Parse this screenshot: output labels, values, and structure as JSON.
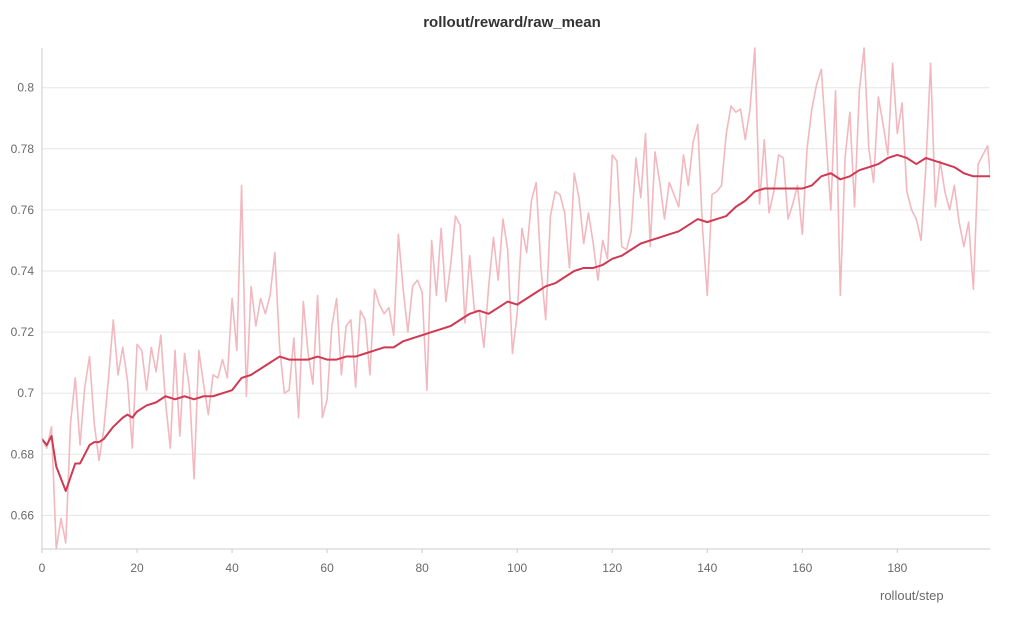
{
  "chart_data": {
    "type": "line",
    "title": "rollout/reward/raw_mean",
    "xlabel": "rollout/step",
    "ylabel": "",
    "xlim": [
      0,
      199
    ],
    "ylim": [
      0.649,
      0.813
    ],
    "x_ticks": [
      "0",
      "20",
      "40",
      "60",
      "80",
      "100",
      "120",
      "140",
      "160",
      "180"
    ],
    "y_ticks": [
      "0.66",
      "0.68",
      "0.7",
      "0.72",
      "0.74",
      "0.76",
      "0.78",
      "0.8"
    ],
    "grid": true,
    "series": [
      {
        "role": "raw",
        "color": "#f2b8bf",
        "points": [
          [
            0,
            0.685
          ],
          [
            1,
            0.682
          ],
          [
            2,
            0.689
          ],
          [
            3,
            0.649
          ],
          [
            4,
            0.659
          ],
          [
            5,
            0.651
          ],
          [
            6,
            0.69
          ],
          [
            7,
            0.705
          ],
          [
            8,
            0.683
          ],
          [
            9,
            0.702
          ],
          [
            10,
            0.712
          ],
          [
            11,
            0.69
          ],
          [
            12,
            0.678
          ],
          [
            13,
            0.688
          ],
          [
            14,
            0.705
          ],
          [
            15,
            0.724
          ],
          [
            16,
            0.706
          ],
          [
            17,
            0.715
          ],
          [
            18,
            0.704
          ],
          [
            19,
            0.682
          ],
          [
            20,
            0.716
          ],
          [
            21,
            0.714
          ],
          [
            22,
            0.701
          ],
          [
            23,
            0.715
          ],
          [
            24,
            0.707
          ],
          [
            25,
            0.719
          ],
          [
            26,
            0.697
          ],
          [
            27,
            0.682
          ],
          [
            28,
            0.714
          ],
          [
            29,
            0.686
          ],
          [
            30,
            0.713
          ],
          [
            31,
            0.702
          ],
          [
            32,
            0.672
          ],
          [
            33,
            0.714
          ],
          [
            34,
            0.703
          ],
          [
            35,
            0.693
          ],
          [
            36,
            0.706
          ],
          [
            37,
            0.705
          ],
          [
            38,
            0.711
          ],
          [
            39,
            0.705
          ],
          [
            40,
            0.731
          ],
          [
            41,
            0.714
          ],
          [
            42,
            0.768
          ],
          [
            43,
            0.699
          ],
          [
            44,
            0.735
          ],
          [
            45,
            0.722
          ],
          [
            46,
            0.731
          ],
          [
            47,
            0.726
          ],
          [
            48,
            0.732
          ],
          [
            49,
            0.746
          ],
          [
            50,
            0.715
          ],
          [
            51,
            0.7
          ],
          [
            52,
            0.701
          ],
          [
            53,
            0.718
          ],
          [
            54,
            0.692
          ],
          [
            55,
            0.73
          ],
          [
            56,
            0.713
          ],
          [
            57,
            0.703
          ],
          [
            58,
            0.732
          ],
          [
            59,
            0.692
          ],
          [
            60,
            0.698
          ],
          [
            61,
            0.722
          ],
          [
            62,
            0.731
          ],
          [
            63,
            0.706
          ],
          [
            64,
            0.722
          ],
          [
            65,
            0.724
          ],
          [
            66,
            0.702
          ],
          [
            67,
            0.727
          ],
          [
            68,
            0.724
          ],
          [
            69,
            0.706
          ],
          [
            70,
            0.734
          ],
          [
            71,
            0.729
          ],
          [
            72,
            0.726
          ],
          [
            73,
            0.728
          ],
          [
            74,
            0.719
          ],
          [
            75,
            0.752
          ],
          [
            76,
            0.734
          ],
          [
            77,
            0.72
          ],
          [
            78,
            0.735
          ],
          [
            79,
            0.737
          ],
          [
            80,
            0.733
          ],
          [
            81,
            0.701
          ],
          [
            82,
            0.75
          ],
          [
            83,
            0.732
          ],
          [
            84,
            0.754
          ],
          [
            85,
            0.73
          ],
          [
            86,
            0.742
          ],
          [
            87,
            0.758
          ],
          [
            88,
            0.755
          ],
          [
            89,
            0.723
          ],
          [
            90,
            0.745
          ],
          [
            91,
            0.727
          ],
          [
            92,
            0.727
          ],
          [
            93,
            0.715
          ],
          [
            94,
            0.735
          ],
          [
            95,
            0.751
          ],
          [
            96,
            0.737
          ],
          [
            97,
            0.757
          ],
          [
            98,
            0.747
          ],
          [
            99,
            0.713
          ],
          [
            100,
            0.726
          ],
          [
            101,
            0.754
          ],
          [
            102,
            0.746
          ],
          [
            103,
            0.763
          ],
          [
            104,
            0.769
          ],
          [
            105,
            0.741
          ],
          [
            106,
            0.724
          ],
          [
            107,
            0.758
          ],
          [
            108,
            0.766
          ],
          [
            109,
            0.765
          ],
          [
            110,
            0.759
          ],
          [
            111,
            0.741
          ],
          [
            112,
            0.772
          ],
          [
            113,
            0.764
          ],
          [
            114,
            0.749
          ],
          [
            115,
            0.759
          ],
          [
            116,
            0.749
          ],
          [
            117,
            0.737
          ],
          [
            118,
            0.75
          ],
          [
            119,
            0.744
          ],
          [
            120,
            0.778
          ],
          [
            121,
            0.776
          ],
          [
            122,
            0.748
          ],
          [
            123,
            0.747
          ],
          [
            124,
            0.753
          ],
          [
            125,
            0.777
          ],
          [
            126,
            0.764
          ],
          [
            127,
            0.785
          ],
          [
            128,
            0.748
          ],
          [
            129,
            0.779
          ],
          [
            130,
            0.769
          ],
          [
            131,
            0.757
          ],
          [
            132,
            0.769
          ],
          [
            133,
            0.765
          ],
          [
            134,
            0.761
          ],
          [
            135,
            0.778
          ],
          [
            136,
            0.768
          ],
          [
            137,
            0.782
          ],
          [
            138,
            0.788
          ],
          [
            139,
            0.754
          ],
          [
            140,
            0.732
          ],
          [
            141,
            0.765
          ],
          [
            142,
            0.766
          ],
          [
            143,
            0.768
          ],
          [
            144,
            0.785
          ],
          [
            145,
            0.794
          ],
          [
            146,
            0.792
          ],
          [
            147,
            0.793
          ],
          [
            148,
            0.783
          ],
          [
            149,
            0.793
          ],
          [
            150,
            0.813
          ],
          [
            151,
            0.762
          ],
          [
            152,
            0.783
          ],
          [
            153,
            0.759
          ],
          [
            154,
            0.766
          ],
          [
            155,
            0.778
          ],
          [
            156,
            0.777
          ],
          [
            157,
            0.757
          ],
          [
            158,
            0.762
          ],
          [
            159,
            0.768
          ],
          [
            160,
            0.752
          ],
          [
            161,
            0.78
          ],
          [
            162,
            0.793
          ],
          [
            163,
            0.801
          ],
          [
            164,
            0.806
          ],
          [
            165,
            0.783
          ],
          [
            166,
            0.76
          ],
          [
            167,
            0.799
          ],
          [
            168,
            0.732
          ],
          [
            169,
            0.777
          ],
          [
            170,
            0.792
          ],
          [
            171,
            0.761
          ],
          [
            172,
            0.799
          ],
          [
            173,
            0.813
          ],
          [
            174,
            0.78
          ],
          [
            175,
            0.769
          ],
          [
            176,
            0.797
          ],
          [
            177,
            0.788
          ],
          [
            178,
            0.778
          ],
          [
            179,
            0.808
          ],
          [
            180,
            0.785
          ],
          [
            181,
            0.795
          ],
          [
            182,
            0.766
          ],
          [
            183,
            0.76
          ],
          [
            184,
            0.757
          ],
          [
            185,
            0.75
          ],
          [
            186,
            0.774
          ],
          [
            187,
            0.808
          ],
          [
            188,
            0.761
          ],
          [
            189,
            0.776
          ],
          [
            190,
            0.766
          ],
          [
            191,
            0.76
          ],
          [
            192,
            0.768
          ],
          [
            193,
            0.756
          ],
          [
            194,
            0.748
          ],
          [
            195,
            0.756
          ],
          [
            196,
            0.734
          ],
          [
            197,
            0.775
          ],
          [
            198,
            0.778
          ],
          [
            199,
            0.781
          ],
          [
            200,
            0.763
          ]
        ]
      },
      {
        "role": "smoothed",
        "color": "#cf3a52",
        "points": [
          [
            0,
            0.685
          ],
          [
            1,
            0.683
          ],
          [
            2,
            0.686
          ],
          [
            3,
            0.676
          ],
          [
            5,
            0.668
          ],
          [
            7,
            0.677
          ],
          [
            8,
            0.677
          ],
          [
            9,
            0.68
          ],
          [
            10,
            0.683
          ],
          [
            11,
            0.684
          ],
          [
            12,
            0.684
          ],
          [
            13,
            0.685
          ],
          [
            15,
            0.689
          ],
          [
            17,
            0.692
          ],
          [
            18,
            0.693
          ],
          [
            19,
            0.692
          ],
          [
            20,
            0.694
          ],
          [
            22,
            0.696
          ],
          [
            24,
            0.697
          ],
          [
            26,
            0.699
          ],
          [
            28,
            0.698
          ],
          [
            30,
            0.699
          ],
          [
            32,
            0.698
          ],
          [
            34,
            0.699
          ],
          [
            36,
            0.699
          ],
          [
            38,
            0.7
          ],
          [
            40,
            0.701
          ],
          [
            42,
            0.705
          ],
          [
            44,
            0.706
          ],
          [
            46,
            0.708
          ],
          [
            48,
            0.71
          ],
          [
            50,
            0.712
          ],
          [
            52,
            0.711
          ],
          [
            54,
            0.711
          ],
          [
            56,
            0.711
          ],
          [
            58,
            0.712
          ],
          [
            60,
            0.711
          ],
          [
            62,
            0.711
          ],
          [
            64,
            0.712
          ],
          [
            66,
            0.712
          ],
          [
            68,
            0.713
          ],
          [
            70,
            0.714
          ],
          [
            72,
            0.715
          ],
          [
            74,
            0.715
          ],
          [
            76,
            0.717
          ],
          [
            78,
            0.718
          ],
          [
            80,
            0.719
          ],
          [
            82,
            0.72
          ],
          [
            84,
            0.721
          ],
          [
            86,
            0.722
          ],
          [
            88,
            0.724
          ],
          [
            90,
            0.726
          ],
          [
            92,
            0.727
          ],
          [
            94,
            0.726
          ],
          [
            96,
            0.728
          ],
          [
            98,
            0.73
          ],
          [
            100,
            0.729
          ],
          [
            102,
            0.731
          ],
          [
            104,
            0.733
          ],
          [
            106,
            0.735
          ],
          [
            108,
            0.736
          ],
          [
            110,
            0.738
          ],
          [
            112,
            0.74
          ],
          [
            114,
            0.741
          ],
          [
            116,
            0.741
          ],
          [
            118,
            0.742
          ],
          [
            120,
            0.744
          ],
          [
            122,
            0.745
          ],
          [
            124,
            0.747
          ],
          [
            126,
            0.749
          ],
          [
            128,
            0.75
          ],
          [
            130,
            0.751
          ],
          [
            132,
            0.752
          ],
          [
            134,
            0.753
          ],
          [
            136,
            0.755
          ],
          [
            138,
            0.757
          ],
          [
            140,
            0.756
          ],
          [
            142,
            0.757
          ],
          [
            144,
            0.758
          ],
          [
            146,
            0.761
          ],
          [
            148,
            0.763
          ],
          [
            150,
            0.766
          ],
          [
            152,
            0.767
          ],
          [
            154,
            0.767
          ],
          [
            156,
            0.767
          ],
          [
            158,
            0.767
          ],
          [
            160,
            0.767
          ],
          [
            162,
            0.768
          ],
          [
            164,
            0.771
          ],
          [
            166,
            0.772
          ],
          [
            168,
            0.77
          ],
          [
            170,
            0.771
          ],
          [
            172,
            0.773
          ],
          [
            174,
            0.774
          ],
          [
            176,
            0.775
          ],
          [
            178,
            0.777
          ],
          [
            180,
            0.778
          ],
          [
            182,
            0.777
          ],
          [
            184,
            0.775
          ],
          [
            186,
            0.777
          ],
          [
            188,
            0.776
          ],
          [
            190,
            0.775
          ],
          [
            192,
            0.774
          ],
          [
            194,
            0.772
          ],
          [
            196,
            0.771
          ],
          [
            198,
            0.771
          ],
          [
            200,
            0.771
          ]
        ]
      }
    ]
  }
}
